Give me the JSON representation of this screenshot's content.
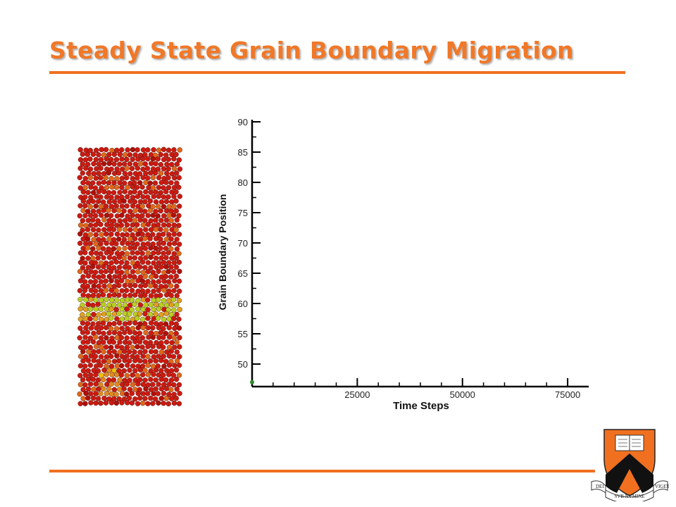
{
  "slide": {
    "title": "Steady State Grain Boundary Migration"
  },
  "chart_data": {
    "type": "line",
    "title": "",
    "xlabel": "Time Steps",
    "ylabel": "Grain Boundary Position",
    "xlim": [
      0,
      80000
    ],
    "ylim": [
      47,
      90
    ],
    "x_ticks": [
      25000,
      50000,
      75000
    ],
    "y_ticks": [
      50,
      55,
      60,
      65,
      70,
      75,
      80,
      85,
      90
    ],
    "grid": false,
    "series": [
      {
        "points": [
          [
            0,
            47
          ]
        ],
        "color": "#2e8b2e"
      }
    ]
  },
  "simulation": {
    "grain_color": "#cc1a10",
    "boundary_color": "#b8d020",
    "highlight_color": "#f0c000"
  },
  "logo": {
    "shield_color": "#f07020",
    "chevron_color": "#111111",
    "motto": [
      "DEI",
      "SVB NVMINE",
      "VIGET"
    ]
  }
}
